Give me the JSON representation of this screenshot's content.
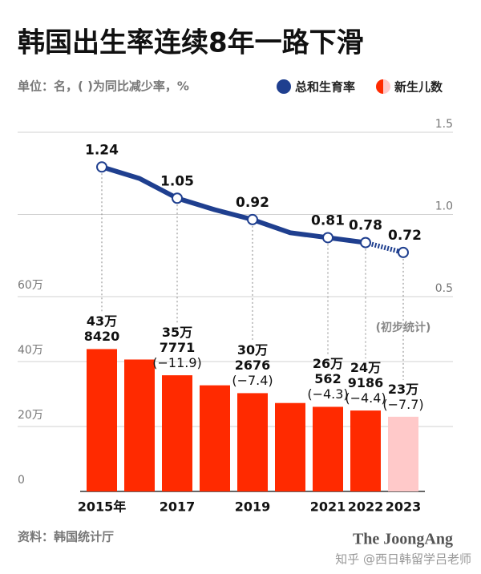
{
  "chart_data": {
    "type": "bar_line",
    "title": "韩国出生率连续8年一路下滑",
    "subtitle": "单位：名，( )为同比减少率，%",
    "source": "资料：韩国统计厅",
    "logo": "The JoongAng",
    "watermark": "知乎 @西日韩留学吕老师",
    "categories": [
      "2015年",
      null,
      "2017",
      null,
      "2019",
      null,
      "2021",
      "2022",
      "2023"
    ],
    "series": [
      {
        "name": "新生儿数",
        "type": "bar",
        "color": "#ff2a00",
        "colors": [
          "#ff2a00",
          "#ff2a00",
          "#ff2a00",
          "#ff2a00",
          "#ff2a00",
          "#ff2a00",
          "#ff2a00",
          "#ff2a00",
          "#ffc9c9"
        ],
        "values": [
          438420,
          406243,
          357771,
          326822,
          302676,
          272337,
          260562,
          249186,
          230000
        ],
        "value_labels": [
          "43万\n8420",
          null,
          "35万\n7771",
          null,
          "30万\n2676",
          null,
          "26万\n562",
          "24万\n9186",
          "23万"
        ],
        "change_labels": [
          null,
          null,
          "(−11.9)",
          null,
          "(−7.4)",
          null,
          "(−4.3)",
          "(−4.4)",
          "(−7.7)"
        ]
      },
      {
        "name": "总和生育率",
        "type": "line",
        "axis": "y2",
        "color": "#1f3f8f",
        "last_segment_style": "dotted",
        "values": [
          1.24,
          1.17,
          1.05,
          0.98,
          0.92,
          0.84,
          0.81,
          0.78,
          0.72
        ],
        "value_labels": [
          "1.24",
          null,
          "1.05",
          null,
          "0.92",
          null,
          "0.81",
          "0.78",
          "0.72"
        ]
      }
    ],
    "annotation": "(初步统计)",
    "ylim": [
      0,
      600000
    ],
    "yticks": [
      {
        "value": 0,
        "label": "0"
      },
      {
        "value": 200000,
        "label": "20万"
      },
      {
        "value": 400000,
        "label": "40万"
      },
      {
        "value": 600000,
        "label": "60万"
      }
    ],
    "y2lim": [
      0.5,
      1.5
    ],
    "y2ticks": [
      0.5,
      {
        "value": 1,
        "label": "1.0"
      },
      1.5
    ],
    "grid": true
  }
}
